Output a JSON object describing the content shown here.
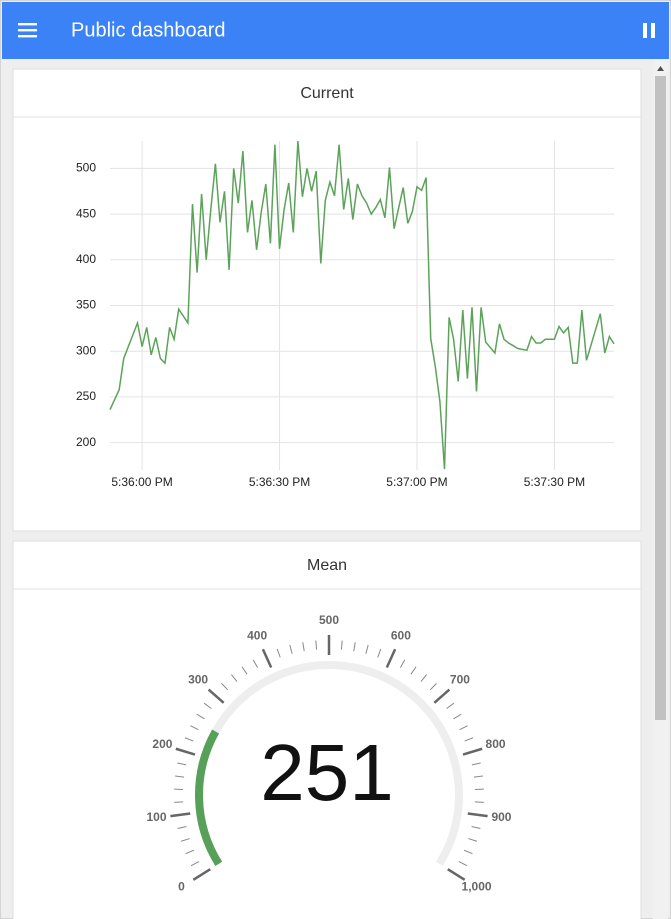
{
  "header": {
    "title": "Public dashboard"
  },
  "chart_data": [
    {
      "type": "line",
      "title": "Current",
      "color": "#5ca35a",
      "grid": true,
      "x": [
        "5:35:53 PM",
        "5:35:55 PM",
        "5:35:56 PM",
        "5:35:59 PM",
        "5:36:00 PM",
        "5:36:01 PM",
        "5:36:02 PM",
        "5:36:03 PM",
        "5:36:04 PM",
        "5:36:05 PM",
        "5:36:06 PM",
        "5:36:07 PM",
        "5:36:08 PM",
        "5:36:10 PM",
        "5:36:11 PM",
        "5:36:12 PM",
        "5:36:13 PM",
        "5:36:14 PM",
        "5:36:15 PM",
        "5:36:16 PM",
        "5:36:17 PM",
        "5:36:18 PM",
        "5:36:19 PM",
        "5:36:20 PM",
        "5:36:21 PM",
        "5:36:22 PM",
        "5:36:23 PM",
        "5:36:24 PM",
        "5:36:25 PM",
        "5:36:26 PM",
        "5:36:27 PM",
        "5:36:28 PM",
        "5:36:29 PM",
        "5:36:30 PM",
        "5:36:31 PM",
        "5:36:32 PM",
        "5:36:33 PM",
        "5:36:34 PM",
        "5:36:35 PM",
        "5:36:36 PM",
        "5:36:37 PM",
        "5:36:38 PM",
        "5:36:39 PM",
        "5:36:40 PM",
        "5:36:41 PM",
        "5:36:42 PM",
        "5:36:43 PM",
        "5:36:44 PM",
        "5:36:45 PM",
        "5:36:46 PM",
        "5:36:47 PM",
        "5:36:48 PM",
        "5:36:49 PM",
        "5:36:50 PM",
        "5:36:51 PM",
        "5:36:52 PM",
        "5:36:53 PM",
        "5:36:54 PM",
        "5:36:55 PM",
        "5:36:56 PM",
        "5:36:57 PM",
        "5:36:58 PM",
        "5:36:59 PM",
        "5:37:00 PM",
        "5:37:01 PM",
        "5:37:02 PM",
        "5:37:03 PM",
        "5:37:04 PM",
        "5:37:05 PM",
        "5:37:06 PM",
        "5:37:07 PM",
        "5:37:08 PM",
        "5:37:09 PM",
        "5:37:10 PM",
        "5:37:11 PM",
        "5:37:12 PM",
        "5:37:13 PM",
        "5:37:14 PM",
        "5:37:15 PM",
        "5:37:16 PM",
        "5:37:17 PM",
        "5:37:18 PM",
        "5:37:19 PM",
        "5:37:20 PM",
        "5:37:21 PM",
        "5:37:22 PM",
        "5:37:24 PM",
        "5:37:25 PM",
        "5:37:26 PM",
        "5:37:27 PM",
        "5:37:28 PM",
        "5:37:29 PM",
        "5:37:30 PM",
        "5:37:31 PM",
        "5:37:32 PM",
        "5:37:33 PM",
        "5:37:34 PM",
        "5:37:35 PM",
        "5:37:36 PM",
        "5:37:37 PM",
        "5:37:40 PM",
        "5:37:41 PM",
        "5:37:42 PM",
        "5:37:43 PM"
      ],
      "values": [
        236,
        258,
        292,
        331,
        305,
        326,
        296,
        315,
        292,
        287,
        326,
        313,
        346,
        331,
        461,
        386,
        472,
        400,
        455,
        505,
        441,
        475,
        389,
        500,
        462,
        519,
        430,
        465,
        411,
        452,
        483,
        418,
        526,
        412,
        455,
        484,
        430,
        530,
        469,
        500,
        475,
        497,
        396,
        465,
        485,
        470,
        526,
        455,
        489,
        444,
        483,
        470,
        462,
        450,
        457,
        466,
        446,
        501,
        434,
        457,
        479,
        440,
        453,
        480,
        476,
        490,
        314,
        283,
        245,
        171,
        337,
        313,
        267,
        345,
        270,
        348,
        256,
        348,
        310,
        304,
        298,
        330,
        313,
        309,
        306,
        303,
        301,
        316,
        309,
        309,
        313,
        313,
        313,
        327,
        320,
        326,
        287,
        287,
        345,
        290,
        341,
        298,
        316,
        308
      ],
      "xlim": [
        "5:35:53 PM",
        "5:37:43 PM"
      ],
      "xticks": [
        "5:36:00 PM",
        "5:36:30 PM",
        "5:37:00 PM",
        "5:37:30 PM"
      ],
      "ylim": [
        170,
        530
      ],
      "yticks": [
        200,
        250,
        300,
        350,
        400,
        450,
        500
      ]
    },
    {
      "type": "gauge",
      "title": "Mean",
      "value": 251,
      "color": "#57a05a",
      "range": [
        0,
        1000
      ],
      "ticks": [
        0,
        100,
        200,
        300,
        400,
        500,
        600,
        700,
        800,
        900,
        {
          "value": 1000,
          "label": "1,000"
        }
      ]
    }
  ]
}
